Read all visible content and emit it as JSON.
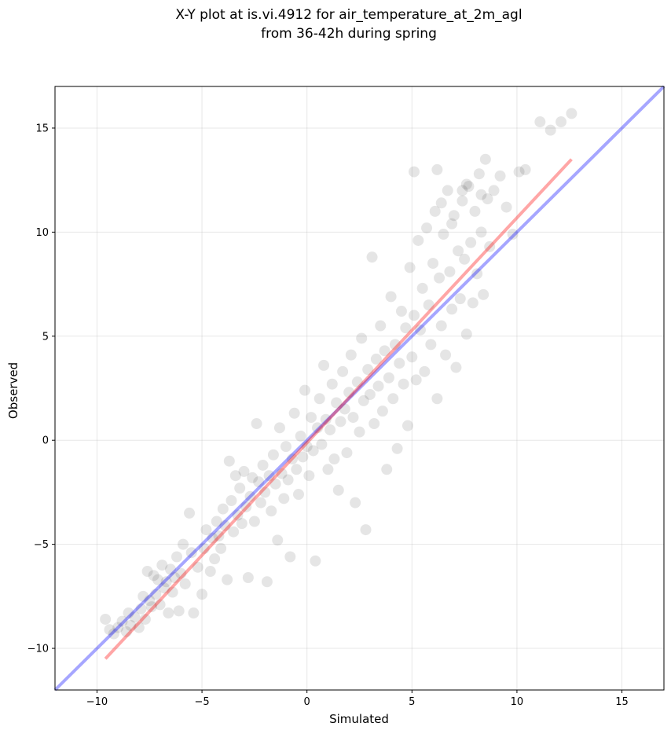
{
  "chart_data": {
    "type": "scatter",
    "title_line1": "X-Y plot at is.vi.4912 for air_temperature_at_2m_agl",
    "title_line2": "from 36-42h during spring",
    "xlabel": "Simulated",
    "ylabel": "Observed",
    "xlim": [
      -12,
      17
    ],
    "ylim": [
      -12,
      17
    ],
    "xticks": [
      -10,
      -5,
      0,
      5,
      10,
      15
    ],
    "yticks": [
      -10,
      -5,
      0,
      5,
      10,
      15
    ],
    "xtick_labels": [
      "−10",
      "−5",
      "0",
      "5",
      "10",
      "15"
    ],
    "ytick_labels": [
      "−10",
      "−5",
      "0",
      "5",
      "10",
      "15"
    ],
    "grid": true,
    "point_color": "#000000",
    "point_alpha": 0.1,
    "points": [
      [
        -9.6,
        -8.6
      ],
      [
        -9.4,
        -9.1
      ],
      [
        -9.2,
        -9.3
      ],
      [
        -9.0,
        -9.0
      ],
      [
        -8.8,
        -8.7
      ],
      [
        -8.6,
        -9.2
      ],
      [
        -8.5,
        -8.3
      ],
      [
        -8.4,
        -8.9
      ],
      [
        -8.2,
        -8.5
      ],
      [
        -8.0,
        -9.0
      ],
      [
        -7.9,
        -8.1
      ],
      [
        -7.8,
        -7.5
      ],
      [
        -7.7,
        -8.6
      ],
      [
        -7.6,
        -6.3
      ],
      [
        -7.5,
        -7.7
      ],
      [
        -7.4,
        -8.0
      ],
      [
        -7.3,
        -6.5
      ],
      [
        -7.2,
        -7.4
      ],
      [
        -7.1,
        -6.7
      ],
      [
        -7.0,
        -7.9
      ],
      [
        -6.9,
        -6.0
      ],
      [
        -6.8,
        -7.1
      ],
      [
        -6.7,
        -6.8
      ],
      [
        -6.6,
        -8.3
      ],
      [
        -6.5,
        -6.2
      ],
      [
        -6.4,
        -7.3
      ],
      [
        -6.3,
        -6.6
      ],
      [
        -6.2,
        -5.6
      ],
      [
        -6.1,
        -8.2
      ],
      [
        -6.0,
        -6.4
      ],
      [
        -5.9,
        -5.0
      ],
      [
        -5.8,
        -6.9
      ],
      [
        -5.6,
        -3.5
      ],
      [
        -5.5,
        -5.4
      ],
      [
        -5.4,
        -8.3
      ],
      [
        -5.2,
        -6.1
      ],
      [
        -5.0,
        -7.4
      ],
      [
        -4.9,
        -5.2
      ],
      [
        -4.8,
        -4.3
      ],
      [
        -4.6,
        -6.3
      ],
      [
        -4.5,
        -4.7
      ],
      [
        -4.4,
        -5.7
      ],
      [
        -4.3,
        -3.9
      ],
      [
        -4.2,
        -4.6
      ],
      [
        -4.1,
        -5.2
      ],
      [
        -4.0,
        -3.3
      ],
      [
        -3.9,
        -4.1
      ],
      [
        -3.8,
        -6.7
      ],
      [
        -3.7,
        -1.0
      ],
      [
        -3.6,
        -2.9
      ],
      [
        -3.5,
        -4.4
      ],
      [
        -3.4,
        -1.7
      ],
      [
        -3.3,
        -3.6
      ],
      [
        -3.2,
        -2.3
      ],
      [
        -3.1,
        -4.0
      ],
      [
        -3.0,
        -1.5
      ],
      [
        -2.9,
        -3.2
      ],
      [
        -2.8,
        -6.6
      ],
      [
        -2.7,
        -2.7
      ],
      [
        -2.6,
        -1.8
      ],
      [
        -2.5,
        -3.9
      ],
      [
        -2.4,
        0.8
      ],
      [
        -2.3,
        -2.0
      ],
      [
        -2.2,
        -3.0
      ],
      [
        -2.1,
        -1.2
      ],
      [
        -2.0,
        -2.5
      ],
      [
        -1.9,
        -6.8
      ],
      [
        -1.8,
        -1.7
      ],
      [
        -1.7,
        -3.4
      ],
      [
        -1.6,
        -0.7
      ],
      [
        -1.5,
        -2.1
      ],
      [
        -1.4,
        -4.8
      ],
      [
        -1.3,
        0.6
      ],
      [
        -1.2,
        -1.6
      ],
      [
        -1.1,
        -2.8
      ],
      [
        -1.0,
        -0.3
      ],
      [
        -0.9,
        -1.9
      ],
      [
        -0.8,
        -5.6
      ],
      [
        -0.7,
        -0.9
      ],
      [
        -0.6,
        1.3
      ],
      [
        -0.5,
        -1.4
      ],
      [
        -0.4,
        -2.6
      ],
      [
        -0.3,
        0.2
      ],
      [
        -0.2,
        -0.8
      ],
      [
        -0.1,
        2.4
      ],
      [
        0.0,
        -0.3
      ],
      [
        0.1,
        -1.7
      ],
      [
        0.2,
        1.1
      ],
      [
        0.3,
        -0.5
      ],
      [
        0.4,
        -5.8
      ],
      [
        0.5,
        0.6
      ],
      [
        0.6,
        2.0
      ],
      [
        0.7,
        -0.2
      ],
      [
        0.8,
        3.6
      ],
      [
        0.9,
        1.0
      ],
      [
        1.0,
        -1.4
      ],
      [
        1.1,
        0.5
      ],
      [
        1.2,
        2.7
      ],
      [
        1.3,
        -0.9
      ],
      [
        1.4,
        1.8
      ],
      [
        1.5,
        -2.4
      ],
      [
        1.6,
        0.9
      ],
      [
        1.7,
        3.3
      ],
      [
        1.8,
        1.5
      ],
      [
        1.9,
        -0.6
      ],
      [
        2.0,
        2.3
      ],
      [
        2.1,
        4.1
      ],
      [
        2.2,
        1.1
      ],
      [
        2.3,
        -3.0
      ],
      [
        2.4,
        2.8
      ],
      [
        2.5,
        0.4
      ],
      [
        2.6,
        4.9
      ],
      [
        2.7,
        1.9
      ],
      [
        2.8,
        -4.3
      ],
      [
        2.9,
        3.4
      ],
      [
        3.0,
        2.2
      ],
      [
        3.1,
        8.8
      ],
      [
        3.2,
        0.8
      ],
      [
        3.3,
        3.9
      ],
      [
        3.4,
        2.6
      ],
      [
        3.5,
        5.5
      ],
      [
        3.6,
        1.4
      ],
      [
        3.7,
        4.3
      ],
      [
        3.8,
        -1.4
      ],
      [
        3.9,
        3.0
      ],
      [
        4.0,
        6.9
      ],
      [
        4.1,
        2.0
      ],
      [
        4.2,
        4.6
      ],
      [
        4.3,
        -0.4
      ],
      [
        4.4,
        3.7
      ],
      [
        4.5,
        6.2
      ],
      [
        4.6,
        2.7
      ],
      [
        4.7,
        5.4
      ],
      [
        4.8,
        0.7
      ],
      [
        4.9,
        8.3
      ],
      [
        5.0,
        4.0
      ],
      [
        5.1,
        6.0
      ],
      [
        5.2,
        2.9
      ],
      [
        5.3,
        9.6
      ],
      [
        5.4,
        5.3
      ],
      [
        5.5,
        7.3
      ],
      [
        5.6,
        3.3
      ],
      [
        5.7,
        10.2
      ],
      [
        5.8,
        6.5
      ],
      [
        5.9,
        4.6
      ],
      [
        6.0,
        8.5
      ],
      [
        6.1,
        11.0
      ],
      [
        6.2,
        2.0
      ],
      [
        6.3,
        7.8
      ],
      [
        6.4,
        5.5
      ],
      [
        6.5,
        9.9
      ],
      [
        6.6,
        4.1
      ],
      [
        6.7,
        12.0
      ],
      [
        6.8,
        8.1
      ],
      [
        6.9,
        6.3
      ],
      [
        7.0,
        10.8
      ],
      [
        7.1,
        3.5
      ],
      [
        7.2,
        9.1
      ],
      [
        7.3,
        6.8
      ],
      [
        7.4,
        11.5
      ],
      [
        7.5,
        8.7
      ],
      [
        7.6,
        5.1
      ],
      [
        7.7,
        12.2
      ],
      [
        7.8,
        9.5
      ],
      [
        7.9,
        6.6
      ],
      [
        8.0,
        11.0
      ],
      [
        8.1,
        8.0
      ],
      [
        8.2,
        12.8
      ],
      [
        8.3,
        10.0
      ],
      [
        8.4,
        7.0
      ],
      [
        8.5,
        13.5
      ],
      [
        8.6,
        11.6
      ],
      [
        8.7,
        9.3
      ],
      [
        8.9,
        12.0
      ],
      [
        9.2,
        12.7
      ],
      [
        9.5,
        11.2
      ],
      [
        9.8,
        9.9
      ],
      [
        10.1,
        12.9
      ],
      [
        10.4,
        13.0
      ],
      [
        11.1,
        15.3
      ],
      [
        11.6,
        14.9
      ],
      [
        12.1,
        15.3
      ],
      [
        12.6,
        15.7
      ],
      [
        7.6,
        12.3
      ],
      [
        6.4,
        11.4
      ],
      [
        6.9,
        10.4
      ],
      [
        7.4,
        12.0
      ],
      [
        8.3,
        11.8
      ],
      [
        6.2,
        13.0
      ],
      [
        5.1,
        12.9
      ]
    ],
    "regression_line": {
      "color": "#ff0000",
      "alpha": 0.35,
      "x": [
        -9.6,
        12.6
      ],
      "y": [
        -10.5,
        13.5
      ]
    },
    "identity_line": {
      "color": "#0000ff",
      "alpha": 0.35,
      "x": [
        -12,
        17
      ],
      "y": [
        -12,
        17
      ]
    }
  }
}
